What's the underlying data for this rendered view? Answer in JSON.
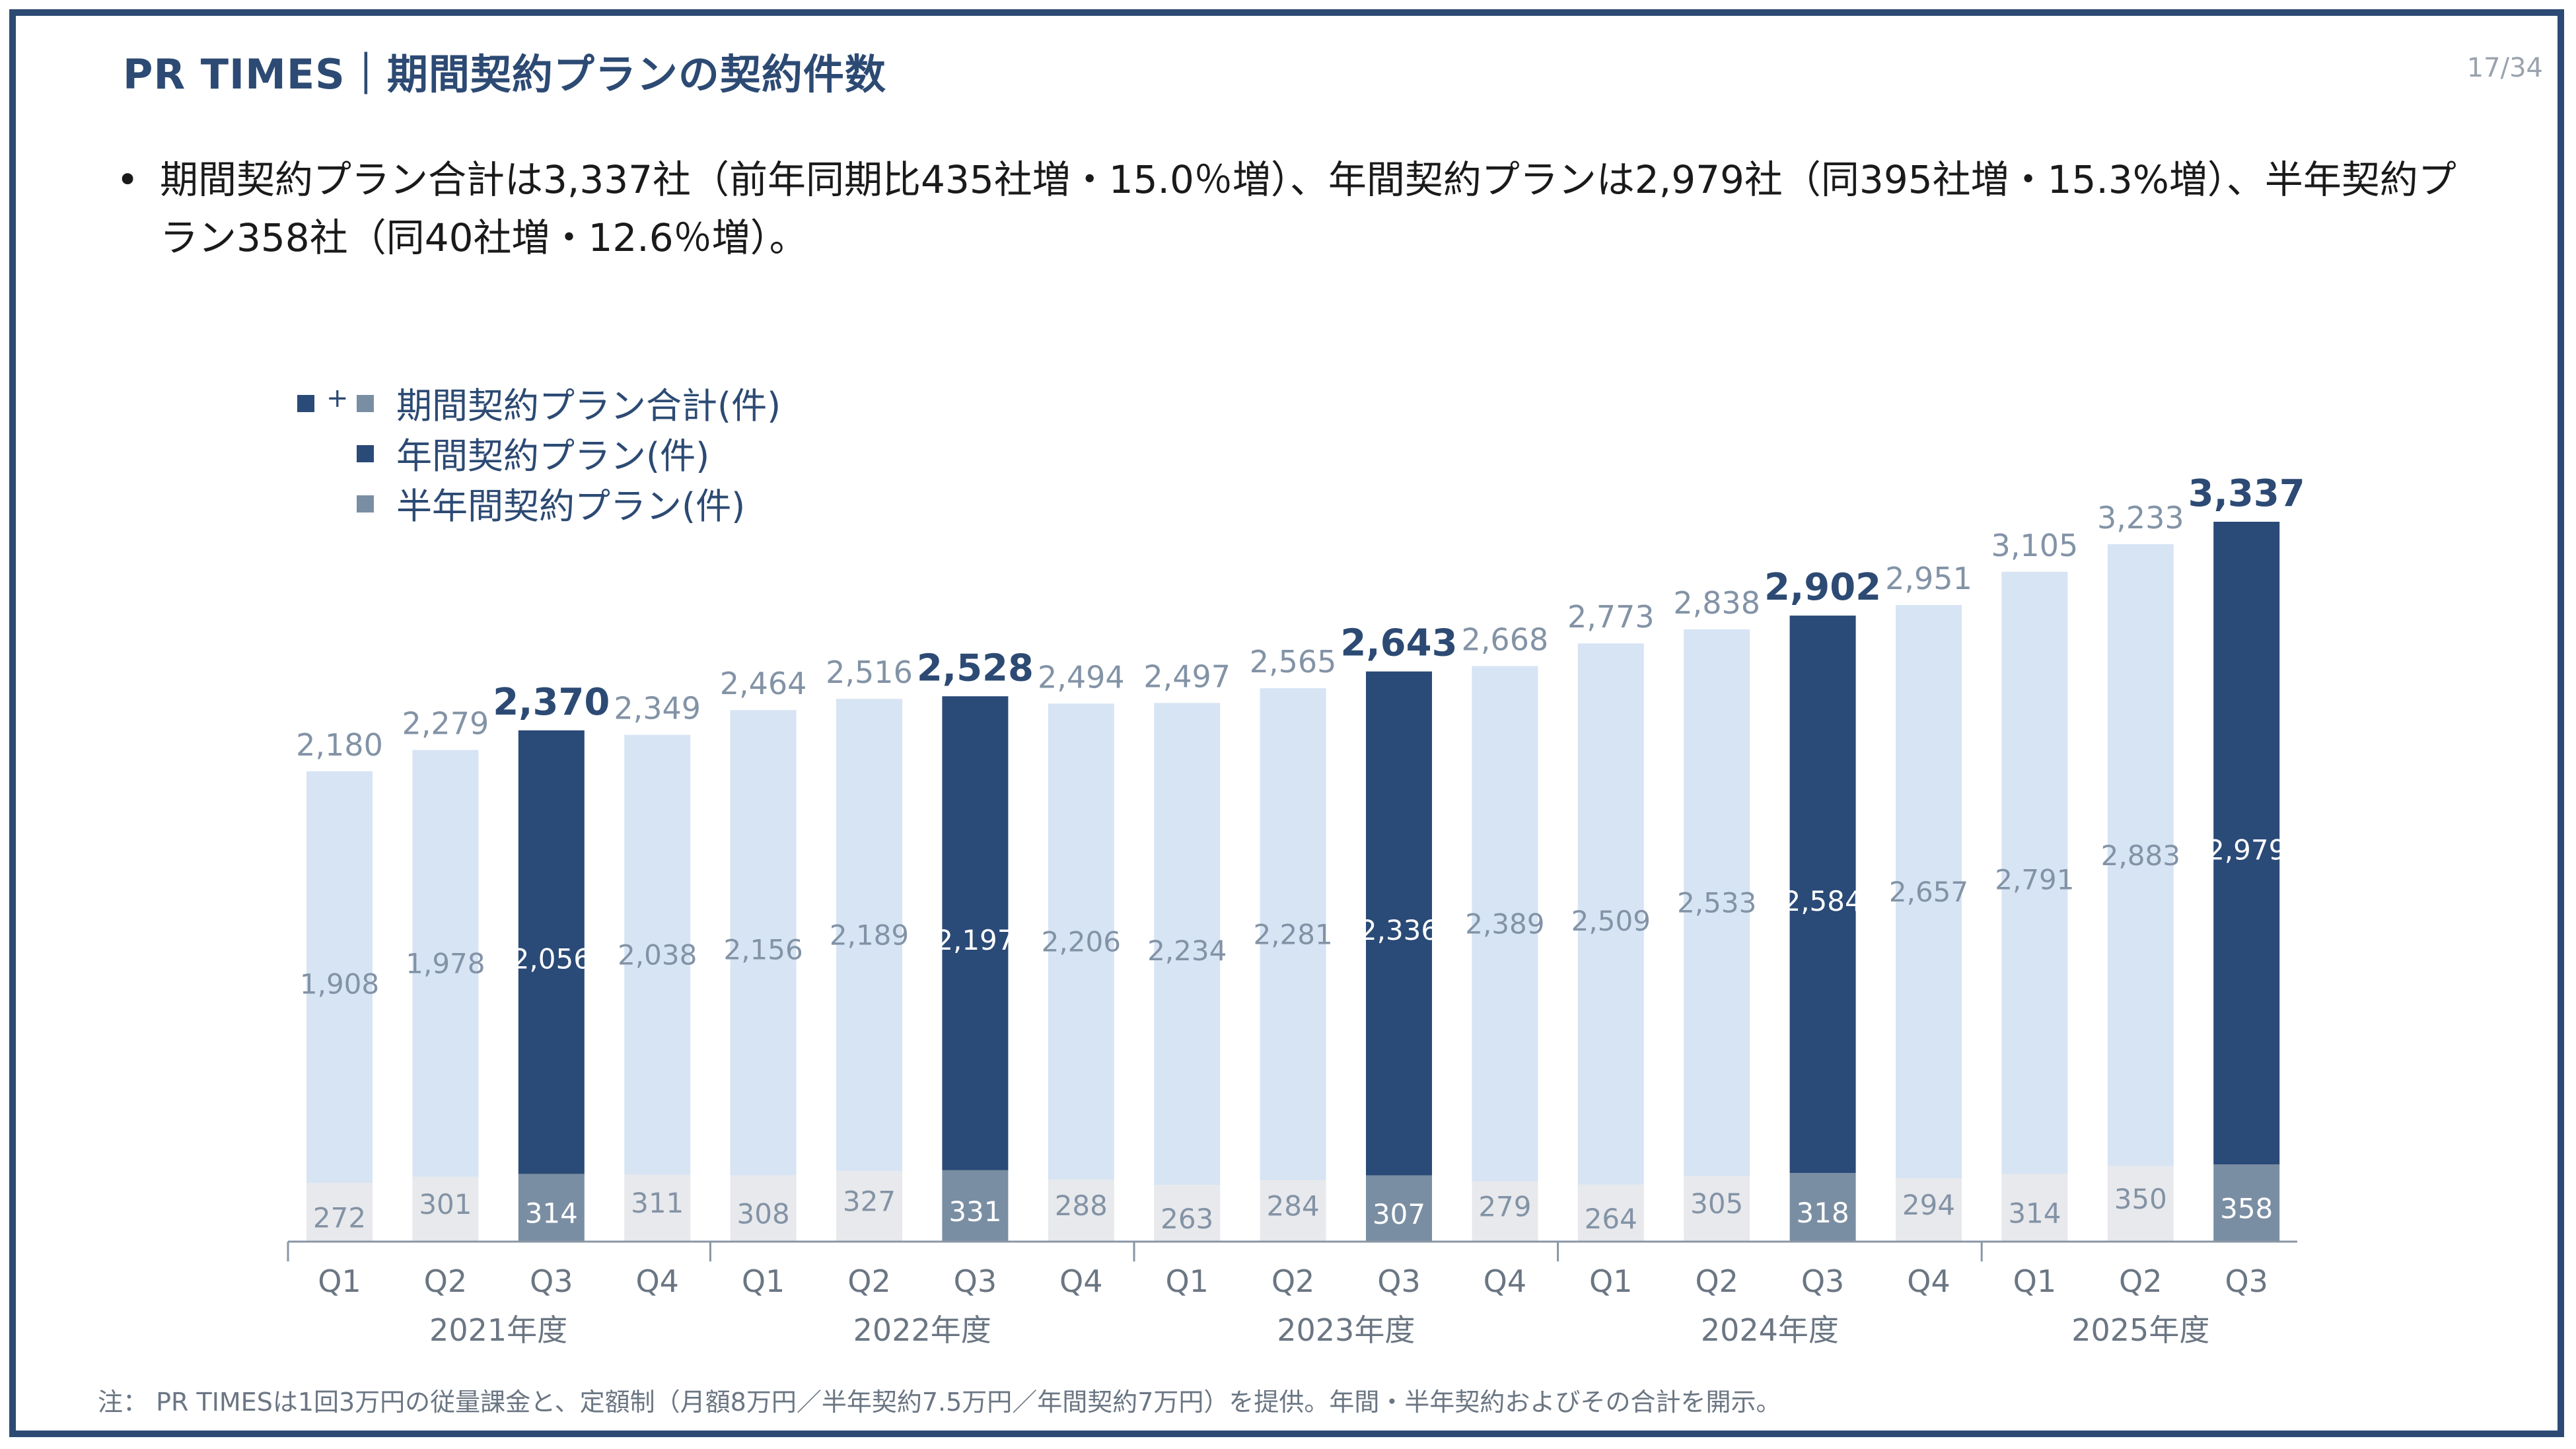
{
  "header": {
    "title": "PR TIMES｜期間契約プランの契約件数",
    "page_number": "17/34"
  },
  "bullet": {
    "symbol": "•",
    "text": "期間契約プラン合計は3,337社（前年同期比435社増・15.0％増）、年間契約プランは2,979社（同395社増・15.3%増）、半年契約プラン358社（同40社増・12.6％増）。"
  },
  "legend": {
    "plus": "+",
    "items": [
      {
        "label": "期間契約プラン合計(件)"
      },
      {
        "label": "年間契約プラン(件)"
      },
      {
        "label": "半年間契約プラン(件)"
      }
    ]
  },
  "colors": {
    "annual_highlight": "#2a4a77",
    "annual": "#d6e4f4",
    "half_highlight": "#7a8ea3",
    "half": "#e8e9ec",
    "frame": "#2c4a73",
    "label_normal": "#8393a6",
    "label_highlight": "#2c4a73"
  },
  "chart_data": {
    "type": "bar",
    "stacked": true,
    "categories": [
      "Q1",
      "Q2",
      "Q3",
      "Q4",
      "Q1",
      "Q2",
      "Q3",
      "Q4",
      "Q1",
      "Q2",
      "Q3",
      "Q4",
      "Q1",
      "Q2",
      "Q3",
      "Q4",
      "Q1",
      "Q2",
      "Q3"
    ],
    "groups": [
      {
        "label": "2021年度",
        "start": 0,
        "count": 4
      },
      {
        "label": "2022年度",
        "start": 4,
        "count": 4
      },
      {
        "label": "2023年度",
        "start": 8,
        "count": 4
      },
      {
        "label": "2024年度",
        "start": 12,
        "count": 4
      },
      {
        "label": "2025年度",
        "start": 16,
        "count": 3
      }
    ],
    "series": [
      {
        "name": "半年間契約プラン(件)",
        "values": [
          272,
          301,
          314,
          311,
          308,
          327,
          331,
          288,
          263,
          284,
          307,
          279,
          264,
          305,
          318,
          294,
          314,
          350,
          358
        ]
      },
      {
        "name": "年間契約プラン(件)",
        "values": [
          1908,
          1978,
          2056,
          2038,
          2156,
          2189,
          2197,
          2206,
          2234,
          2281,
          2336,
          2389,
          2509,
          2533,
          2584,
          2657,
          2791,
          2883,
          2979
        ]
      }
    ],
    "totals": [
      2180,
      2279,
      2370,
      2349,
      2464,
      2516,
      2528,
      2494,
      2497,
      2565,
      2643,
      2668,
      2773,
      2838,
      2902,
      2951,
      3105,
      3233,
      3337
    ],
    "highlight_indices": [
      2,
      6,
      10,
      14,
      18
    ],
    "ylim": [
      0,
      3500
    ]
  },
  "footnote": "注： PR TIMESは1回3万円の従量課金と、定額制（月額8万円／半年契約7.5万円／年間契約7万円）を提供。年間・半年契約およびその合計を開示。"
}
